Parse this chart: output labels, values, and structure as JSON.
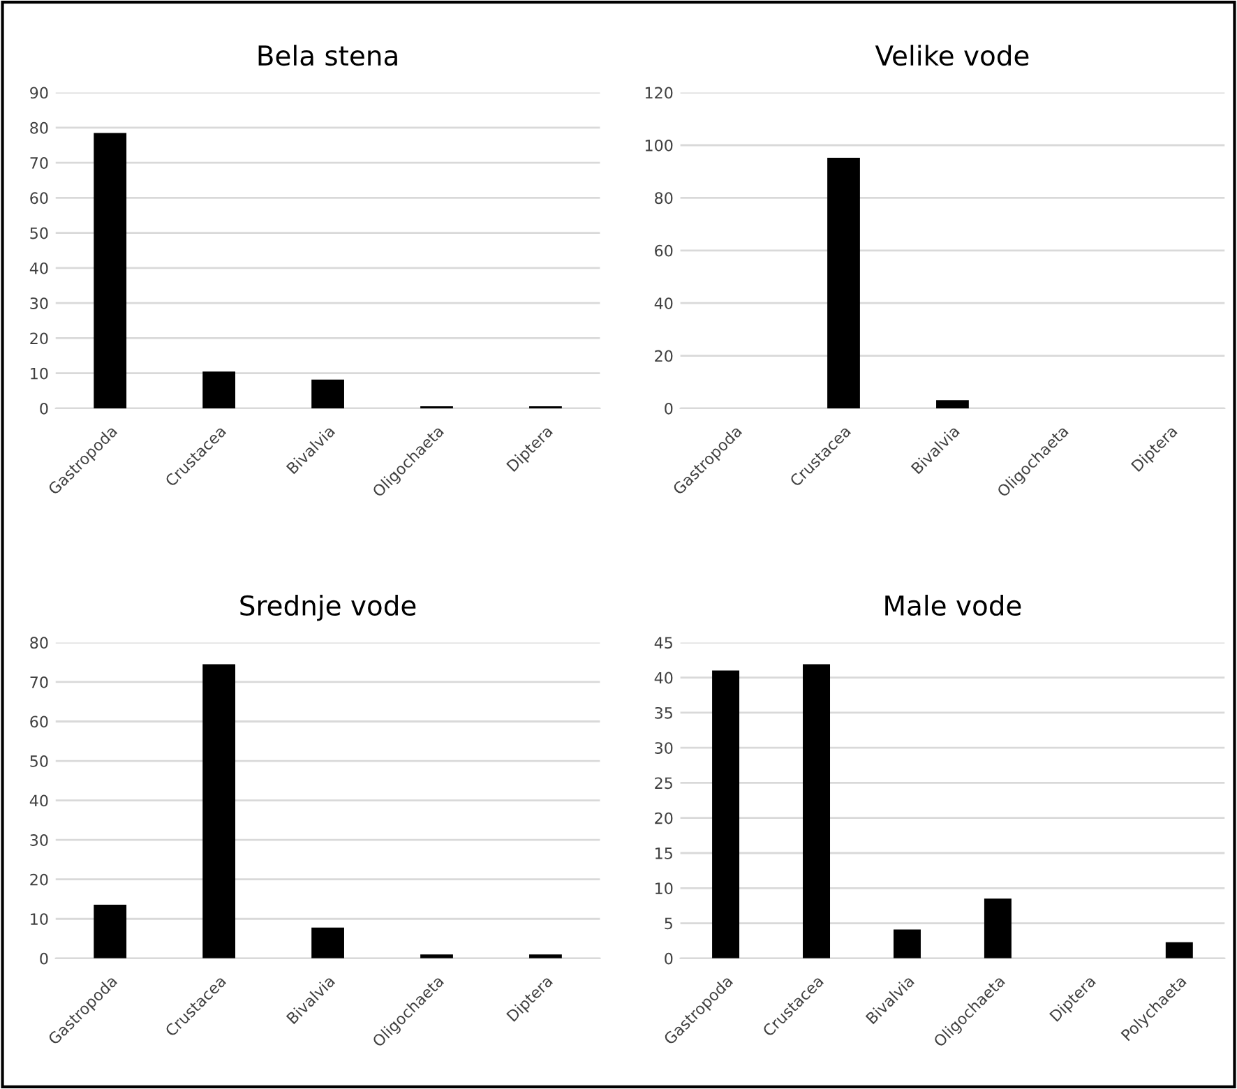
{
  "chart_data": [
    {
      "type": "bar",
      "title": "Bela stena",
      "categories": [
        "Gastropoda",
        "Crustacea",
        "Bivalvia",
        "Oligochaeta",
        "Diptera"
      ],
      "values": [
        78.5,
        10.5,
        8.2,
        0.6,
        0.6
      ],
      "color": "#000000",
      "ylim": [
        0,
        90
      ],
      "yticks": [
        0,
        10,
        20,
        30,
        40,
        50,
        60,
        70,
        80,
        90
      ],
      "grid": "y",
      "legend": false
    },
    {
      "type": "bar",
      "title": "Velike vode",
      "categories": [
        "Gastropoda",
        "Crustacea",
        "Bivalvia",
        "Oligochaeta",
        "Diptera"
      ],
      "values": [
        0,
        95.2,
        3.1,
        0,
        0
      ],
      "color": "#000000",
      "ylim": [
        0,
        120
      ],
      "yticks": [
        0,
        20,
        40,
        60,
        80,
        100,
        120
      ],
      "grid": "y",
      "legend": false
    },
    {
      "type": "bar",
      "title": "Srednje vode",
      "categories": [
        "Gastropoda",
        "Crustacea",
        "Bivalvia",
        "Oligochaeta",
        "Diptera"
      ],
      "values": [
        13.6,
        74.5,
        7.8,
        1,
        1
      ],
      "color": "#000000",
      "ylim": [
        0,
        80
      ],
      "yticks": [
        0,
        10,
        20,
        30,
        40,
        50,
        60,
        70,
        80
      ],
      "grid": "y",
      "legend": false
    },
    {
      "type": "bar",
      "title": "Male vode",
      "categories": [
        "Gastropoda",
        "Crustacea",
        "Bivalvia",
        "Oligochaeta",
        "Diptera",
        "Polychaeta"
      ],
      "values": [
        41.0,
        41.9,
        4.1,
        8.5,
        0,
        2.3
      ],
      "color": "#000000",
      "ylim": [
        0,
        45
      ],
      "yticks": [
        0,
        5,
        10,
        15,
        20,
        25,
        30,
        35,
        40,
        45
      ],
      "grid": "y",
      "legend": false
    }
  ]
}
